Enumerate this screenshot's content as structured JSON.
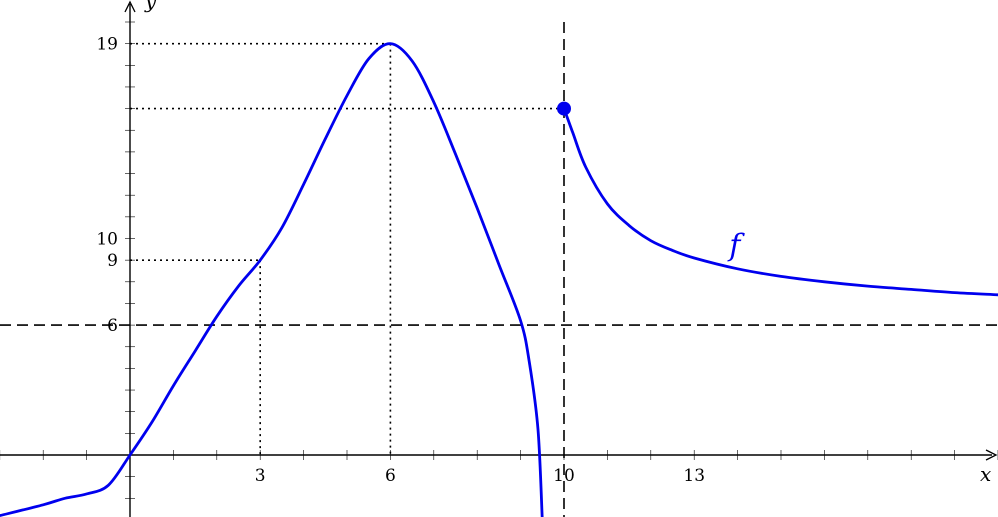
{
  "chart_data": {
    "type": "line",
    "xlabel": "x",
    "ylabel": "y",
    "xlim": [
      -3,
      20.5
    ],
    "ylim": [
      -3,
      20
    ],
    "x_ticks": [
      3,
      6,
      10,
      13
    ],
    "y_ticks": [
      6,
      9,
      10,
      19
    ],
    "series": [
      {
        "name": "f",
        "color": "#0000ee",
        "branches": [
          {
            "x": [
              -3,
              -2,
              -1.5,
              -1,
              -0.5,
              0,
              0.5,
              1,
              1.5,
              2,
              2.5,
              3,
              3.5,
              4,
              4.5,
              5,
              5.5,
              6,
              6.5,
              7,
              7.5,
              8,
              8.5,
              9,
              9.2,
              9.4,
              9.5
            ],
            "y": [
              -2.8,
              -2.3,
              -2.0,
              -1.8,
              -1.4,
              0,
              1.5,
              3.2,
              4.8,
              6.4,
              7.8,
              9.0,
              10.5,
              12.5,
              14.6,
              16.6,
              18.3,
              19.0,
              18.2,
              16.3,
              13.9,
              11.4,
              8.8,
              6.2,
              4.3,
              1.2,
              -3.0
            ]
          },
          {
            "x": [
              10,
              10.2,
              10.5,
              11,
              11.5,
              12,
              12.5,
              13,
              14,
              15,
              16,
              17,
              18,
              19,
              20,
              20.5
            ],
            "y": [
              16,
              14.9,
              13.3,
              11.6,
              10.6,
              9.9,
              9.45,
              9.1,
              8.6,
              8.25,
              8.0,
              7.8,
              7.65,
              7.5,
              7.4,
              7.35
            ]
          }
        ]
      }
    ],
    "endpoint": {
      "x": 10,
      "y": 16,
      "filled": true
    },
    "asymptotes": {
      "vertical_x": 10,
      "horizontal_y": 6
    },
    "reference_lines": [
      {
        "x": 3,
        "y": 9
      },
      {
        "x": 6,
        "y": 19
      },
      {
        "x": 10,
        "y": 16
      }
    ],
    "curve_label": {
      "text": "f",
      "x": 13.9,
      "y": 9.4
    }
  }
}
